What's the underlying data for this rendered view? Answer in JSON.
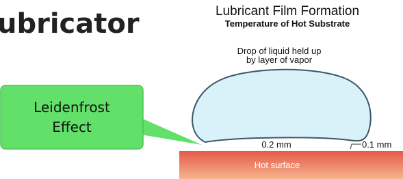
{
  "heading": "ubricator",
  "diagram": {
    "title": "Lubricant Film Formation",
    "subtitle": "Temperature of Hot Substrate",
    "drop_label": [
      "Drop of liquid held up",
      "by layer of vapor"
    ],
    "gap_center": "0.2 mm",
    "gap_edge": "0.1 mm",
    "surface": "Hot surface"
  },
  "callout": [
    "Leidenfrost",
    "Effect"
  ]
}
